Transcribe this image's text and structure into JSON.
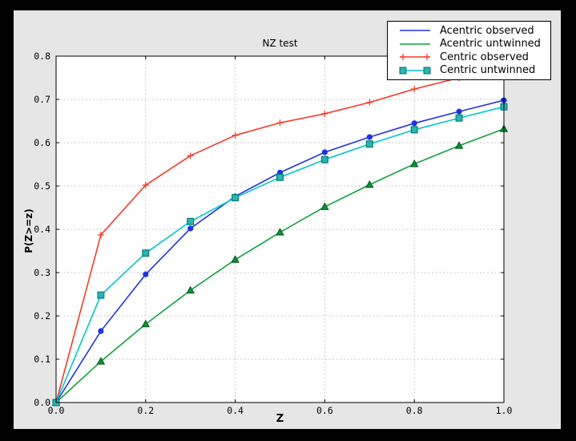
{
  "window": {
    "outer_bg": "#000000",
    "figure_bg": "#e6e6e6",
    "plot_bg": "#ffffff"
  },
  "chart_data": {
    "type": "line",
    "title": "NZ test",
    "xlabel": "Z",
    "ylabel": "P(Z>=z)",
    "xlim": [
      0.0,
      1.0
    ],
    "ylim": [
      0.0,
      0.8
    ],
    "xticks": [
      "0.0",
      "0.2",
      "0.4",
      "0.6",
      "0.8",
      "1.0"
    ],
    "yticks": [
      "0.0",
      "0.1",
      "0.2",
      "0.3",
      "0.4",
      "0.5",
      "0.6",
      "0.7",
      "0.8"
    ],
    "grid": true,
    "grid_color": "#c9c9c9",
    "legend_position": "upper right",
    "x": [
      0.0,
      0.1,
      0.2,
      0.3,
      0.4,
      0.5,
      0.6,
      0.7,
      0.8,
      0.9,
      1.0
    ],
    "series": [
      {
        "name": "Acentric observed",
        "color": "#2233e0",
        "marker": "circle",
        "legend_marker": "none",
        "values": [
          0.0,
          0.165,
          0.296,
          0.402,
          0.476,
          0.531,
          0.578,
          0.613,
          0.645,
          0.672,
          0.698
        ]
      },
      {
        "name": "Acentric untwinned",
        "color": "#12a13e",
        "marker": "triangle",
        "marker_fill": "#0b9135",
        "marker_edge": "#00581c",
        "legend_marker": "none",
        "values": [
          0.0,
          0.095,
          0.181,
          0.259,
          0.33,
          0.393,
          0.452,
          0.503,
          0.551,
          0.593,
          0.632
        ]
      },
      {
        "name": "Centric observed",
        "color": "#f63b2a",
        "marker": "plus",
        "legend_marker": "plus",
        "values": [
          0.0,
          0.387,
          0.502,
          0.57,
          0.617,
          0.646,
          0.667,
          0.693,
          0.724,
          0.75,
          0.77
        ]
      },
      {
        "name": "Centric untwinned",
        "color": "#00c6c9",
        "marker": "square",
        "marker_fill": "#2eb3ae",
        "marker_edge": "#00807e",
        "legend_marker": "square",
        "values": [
          0.0,
          0.248,
          0.345,
          0.418,
          0.473,
          0.52,
          0.561,
          0.597,
          0.63,
          0.657,
          0.683
        ]
      }
    ]
  }
}
